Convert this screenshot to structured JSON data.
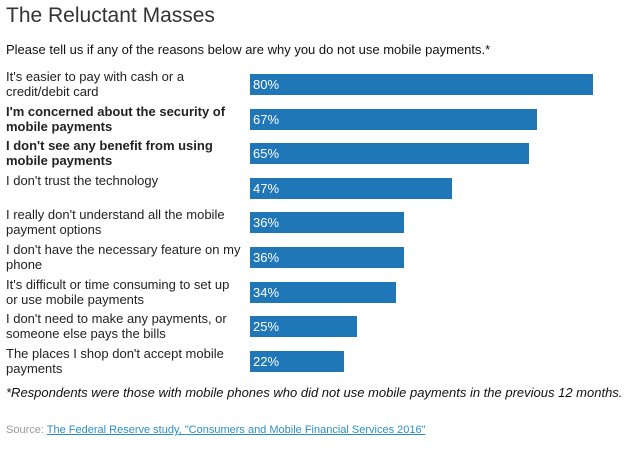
{
  "header": {
    "title": "The Reluctant Masses",
    "subtitle": "Please tell us if any of the reasons below are why you do not use mobile payments.*"
  },
  "colors": {
    "bar": "#2077b8",
    "bar_text": "#ffffff",
    "link": "#2a8fc9"
  },
  "chart_data": {
    "type": "bar",
    "orientation": "horizontal",
    "title": "The Reluctant Masses",
    "subtitle": "Please tell us if any of the reasons below are why you do not use mobile payments.*",
    "categories": [
      "It's easier to pay with cash or a credit/debit card",
      "I'm concerned about the security of mobile payments",
      "I don't see any benefit from using mobile payments",
      "I don't trust the technology",
      "I really don't understand all the mobile payment options",
      "I don't have the necessary feature on my phone",
      "It's difficult or time consuming to set up or use mobile payments",
      "I don't need to make any payments, or someone else pays the bills",
      "The places I shop don't accept mobile payments"
    ],
    "bold_categories": [
      false,
      true,
      true,
      false,
      false,
      false,
      false,
      false,
      false
    ],
    "values": [
      80,
      67,
      65,
      47,
      36,
      36,
      34,
      25,
      22
    ],
    "data_labels": [
      "80%",
      "67%",
      "65%",
      "47%",
      "36%",
      "36%",
      "34%",
      "25%",
      "22%"
    ],
    "unit": "%",
    "xlim": [
      0,
      100
    ],
    "grid": false,
    "legend": "none"
  },
  "footer": {
    "footnote": "*Respondents were those with mobile phones who did not use mobile payments in the previous 12 months.",
    "source_prefix": "Source: ",
    "source_link": "The Federal Reserve study, \"Consumers and Mobile Financial Services 2016\""
  }
}
